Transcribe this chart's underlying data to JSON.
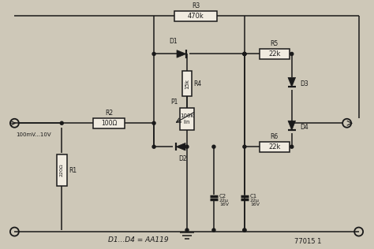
{
  "bg_color": "#cec8b8",
  "line_color": "#1a1a1a",
  "box_color": "#f0ebe0",
  "figsize": [
    4.74,
    3.16
  ],
  "dpi": 100,
  "R1_label": "220Ω",
  "R2_label": "100Ω",
  "R3_label": "470k",
  "R4_label": "15k",
  "R5_label": "22k",
  "R6_label": "22k",
  "C1_label": "22μ\n16V",
  "C2_label": "22μ\n16V",
  "P1_label": "100k\nlin",
  "input_label": "100mV...10V",
  "diode_label": "D1...D4 = AA119",
  "ref_label": "77015 1"
}
